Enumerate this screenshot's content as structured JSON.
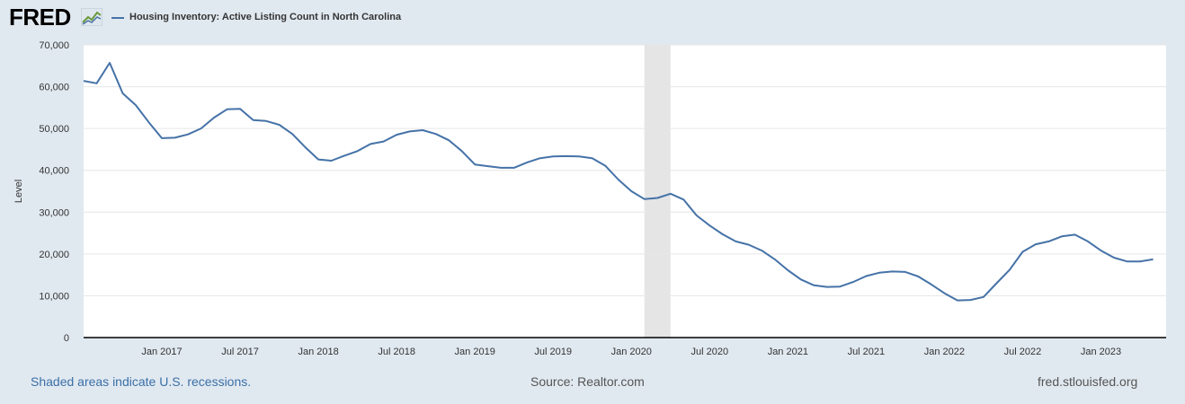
{
  "header": {
    "logo_text": "FRED",
    "legend_label": "Housing Inventory: Active Listing Count in North Carolina"
  },
  "footer": {
    "recession_note": "Shaded areas indicate U.S. recessions.",
    "source": "Source: Realtor.com",
    "site": "fred.stlouisfed.org"
  },
  "colors": {
    "line": "#4572a7",
    "background": "#e1e9f0",
    "plot": "#ffffff",
    "recession": "#e5e5e5",
    "grid": "#e6e6e6"
  },
  "chart_data": {
    "type": "line",
    "title": "",
    "xlabel": "",
    "ylabel": "Level",
    "ylim": [
      0,
      70000
    ],
    "yticks": [
      0,
      10000,
      20000,
      30000,
      40000,
      50000,
      60000,
      70000
    ],
    "ytick_labels": [
      "0",
      "10,000",
      "20,000",
      "30,000",
      "40,000",
      "50,000",
      "60,000",
      "70,000"
    ],
    "x_range": [
      "2016-07",
      "2023-06"
    ],
    "xticks": [
      "2017-01",
      "2017-07",
      "2018-01",
      "2018-07",
      "2019-01",
      "2019-07",
      "2020-01",
      "2020-07",
      "2021-01",
      "2021-07",
      "2022-01",
      "2022-07",
      "2023-01"
    ],
    "xtick_labels": [
      "Jan 2017",
      "Jul 2017",
      "Jan 2018",
      "Jul 2018",
      "Jan 2019",
      "Jul 2019",
      "Jan 2020",
      "Jul 2020",
      "Jan 2021",
      "Jul 2021",
      "Jan 2022",
      "Jul 2022",
      "Jan 2023"
    ],
    "recessions": [
      [
        "2020-02",
        "2020-04"
      ]
    ],
    "grid": true,
    "legend": "top-left",
    "series": [
      {
        "name": "Housing Inventory: Active Listing Count in North Carolina",
        "color": "#4572a7",
        "points": [
          [
            "2016-07",
            61400
          ],
          [
            "2016-08",
            60800
          ],
          [
            "2016-09",
            65700
          ],
          [
            "2016-10",
            58400
          ],
          [
            "2016-11",
            55600
          ],
          [
            "2016-12",
            51500
          ],
          [
            "2017-01",
            47700
          ],
          [
            "2017-02",
            47800
          ],
          [
            "2017-03",
            48600
          ],
          [
            "2017-04",
            50000
          ],
          [
            "2017-05",
            52600
          ],
          [
            "2017-06",
            54600
          ],
          [
            "2017-07",
            54700
          ],
          [
            "2017-08",
            52000
          ],
          [
            "2017-09",
            51800
          ],
          [
            "2017-10",
            50900
          ],
          [
            "2017-11",
            48700
          ],
          [
            "2017-12",
            45500
          ],
          [
            "2018-01",
            42600
          ],
          [
            "2018-02",
            42300
          ],
          [
            "2018-03",
            43500
          ],
          [
            "2018-04",
            44600
          ],
          [
            "2018-05",
            46300
          ],
          [
            "2018-06",
            46900
          ],
          [
            "2018-07",
            48500
          ],
          [
            "2018-08",
            49300
          ],
          [
            "2018-09",
            49600
          ],
          [
            "2018-10",
            48700
          ],
          [
            "2018-11",
            47200
          ],
          [
            "2018-12",
            44600
          ],
          [
            "2019-01",
            41400
          ],
          [
            "2019-02",
            41000
          ],
          [
            "2019-03",
            40600
          ],
          [
            "2019-04",
            40600
          ],
          [
            "2019-05",
            41900
          ],
          [
            "2019-06",
            42900
          ],
          [
            "2019-07",
            43300
          ],
          [
            "2019-08",
            43400
          ],
          [
            "2019-09",
            43300
          ],
          [
            "2019-10",
            42900
          ],
          [
            "2019-11",
            41100
          ],
          [
            "2019-12",
            37800
          ],
          [
            "2020-01",
            35000
          ],
          [
            "2020-02",
            33100
          ],
          [
            "2020-03",
            33400
          ],
          [
            "2020-04",
            34400
          ],
          [
            "2020-05",
            33000
          ],
          [
            "2020-06",
            29200
          ],
          [
            "2020-07",
            26800
          ],
          [
            "2020-08",
            24700
          ],
          [
            "2020-09",
            23000
          ],
          [
            "2020-10",
            22200
          ],
          [
            "2020-11",
            20800
          ],
          [
            "2020-12",
            18700
          ],
          [
            "2021-01",
            16100
          ],
          [
            "2021-02",
            13900
          ],
          [
            "2021-03",
            12500
          ],
          [
            "2021-04",
            12100
          ],
          [
            "2021-05",
            12200
          ],
          [
            "2021-06",
            13300
          ],
          [
            "2021-07",
            14700
          ],
          [
            "2021-08",
            15500
          ],
          [
            "2021-09",
            15800
          ],
          [
            "2021-10",
            15700
          ],
          [
            "2021-11",
            14600
          ],
          [
            "2021-12",
            12700
          ],
          [
            "2022-01",
            10600
          ],
          [
            "2022-02",
            8900
          ],
          [
            "2022-03",
            9000
          ],
          [
            "2022-04",
            9700
          ],
          [
            "2022-05",
            13000
          ],
          [
            "2022-06",
            16200
          ],
          [
            "2022-07",
            20500
          ],
          [
            "2022-08",
            22300
          ],
          [
            "2022-09",
            23000
          ],
          [
            "2022-10",
            24200
          ],
          [
            "2022-11",
            24600
          ],
          [
            "2022-12",
            23000
          ],
          [
            "2023-01",
            20800
          ],
          [
            "2023-02",
            19100
          ],
          [
            "2023-03",
            18200
          ],
          [
            "2023-04",
            18200
          ],
          [
            "2023-05",
            18700
          ]
        ]
      }
    ]
  }
}
